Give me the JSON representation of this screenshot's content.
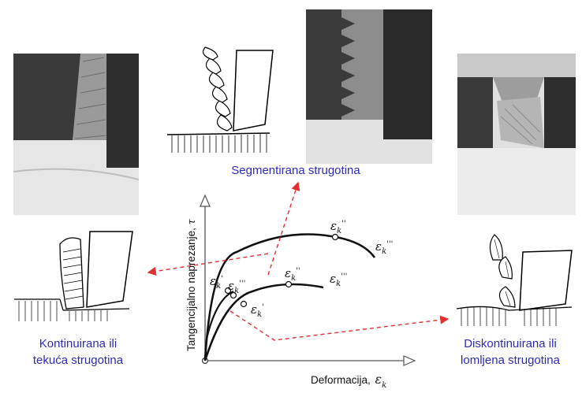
{
  "captions": {
    "continuous": [
      "Kontinuirana ili",
      "tekuća strugotina"
    ],
    "segmented": "Segmentirana strugotina",
    "discontinuous": [
      "Diskontinuirana ili",
      "lomljena strugotina"
    ]
  },
  "axes": {
    "x_label": "Deformacija,",
    "x_symbol": "ε",
    "x_sub": "k",
    "y_label": "Tangencijalno naprezanje,",
    "y_symbol": "τ"
  },
  "curve_labels": {
    "upper_start": "'",
    "upper_mid": "''",
    "upper_end": "'''",
    "lower_start": "'",
    "lower_mid": "''",
    "lower_end": "'''",
    "lower_alt": "'''"
  },
  "colors": {
    "caption": "#2b2bb8",
    "arrows": "#e03030",
    "curves": "#111111"
  }
}
